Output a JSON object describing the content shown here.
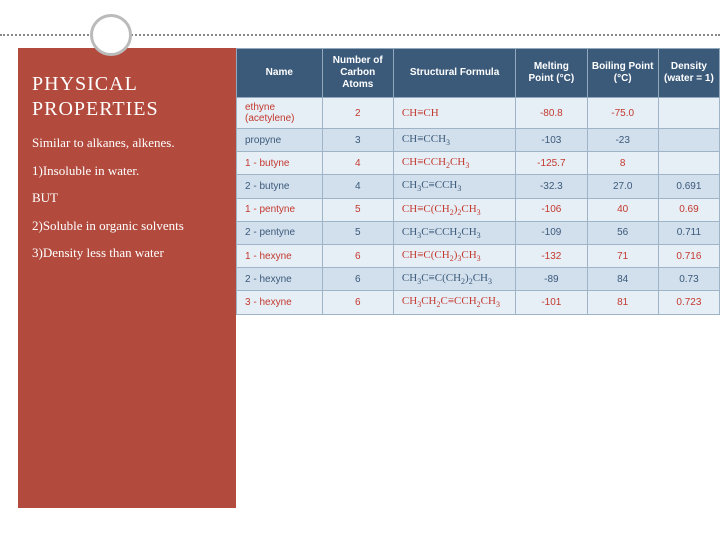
{
  "sidebar": {
    "title_line1": "PHYSICAL",
    "title_line2": "PROPERTIES",
    "lines": [
      "Similar to  alkanes, alkenes.",
      "1)Insoluble in water.",
      "BUT",
      "2)Soluble in organic solvents",
      "3)Density less than water"
    ],
    "bg_color": "#b24b3e"
  },
  "table": {
    "headers": [
      "Name",
      "Number of Carbon Atoms",
      "Structural Formula",
      "Melting Point (°C)",
      "Boiling Point (°C)",
      "Density (water = 1)"
    ],
    "header_bg": "#3b5a7a",
    "row_bg": "#e6eef6",
    "row_alt_bg": "#d2dfec",
    "text_color": "#3b5a7a",
    "red_color": "#c43a2f",
    "rows": [
      {
        "name": "ethyne (acetylene)",
        "atoms": "2",
        "formula": "CH≡CH",
        "mp": "-80.8",
        "bp": "-75.0",
        "dens": "",
        "red": true,
        "alt": false
      },
      {
        "name": "propyne",
        "atoms": "3",
        "formula": "CH≡CCH<sub>3</sub>",
        "mp": "-103",
        "bp": "-23",
        "dens": "",
        "red": false,
        "alt": true
      },
      {
        "name": "1 - butyne",
        "atoms": "4",
        "formula": "CH≡CCH<sub>2</sub>CH<sub>3</sub>",
        "mp": "-125.7",
        "bp": "8",
        "dens": "",
        "red": true,
        "alt": false
      },
      {
        "name": "2 - butyne",
        "atoms": "4",
        "formula": "CH<sub>3</sub>C≡CCH<sub>3</sub>",
        "mp": "-32.3",
        "bp": "27.0",
        "dens": "0.691",
        "red": false,
        "alt": true
      },
      {
        "name": "1 - pentyne",
        "atoms": "5",
        "formula": "CH≡C(CH<sub>2</sub>)<sub>2</sub>CH<sub>3</sub>",
        "mp": "-106",
        "bp": "40",
        "dens": "0.69",
        "red": true,
        "alt": false
      },
      {
        "name": "2 - pentyne",
        "atoms": "5",
        "formula": "CH<sub>3</sub>C≡CCH<sub>2</sub>CH<sub>3</sub>",
        "mp": "-109",
        "bp": "56",
        "dens": "0.711",
        "red": false,
        "alt": true
      },
      {
        "name": "1 - hexyne",
        "atoms": "6",
        "formula": "CH≡C(CH<sub>2</sub>)<sub>3</sub>CH<sub>3</sub>",
        "mp": "-132",
        "bp": "71",
        "dens": "0.716",
        "red": true,
        "alt": false
      },
      {
        "name": "2 - hexyne",
        "atoms": "6",
        "formula": "CH<sub>3</sub>C≡C(CH<sub>2</sub>)<sub>2</sub>CH<sub>3</sub>",
        "mp": "-89",
        "bp": "84",
        "dens": "0.73",
        "red": false,
        "alt": true
      },
      {
        "name": "3 - hexyne",
        "atoms": "6",
        "formula": "CH<sub>3</sub>CH<sub>2</sub>C≡CCH<sub>2</sub>CH<sub>3</sub>",
        "mp": "-101",
        "bp": "81",
        "dens": "0.723",
        "red": true,
        "alt": false
      }
    ]
  }
}
